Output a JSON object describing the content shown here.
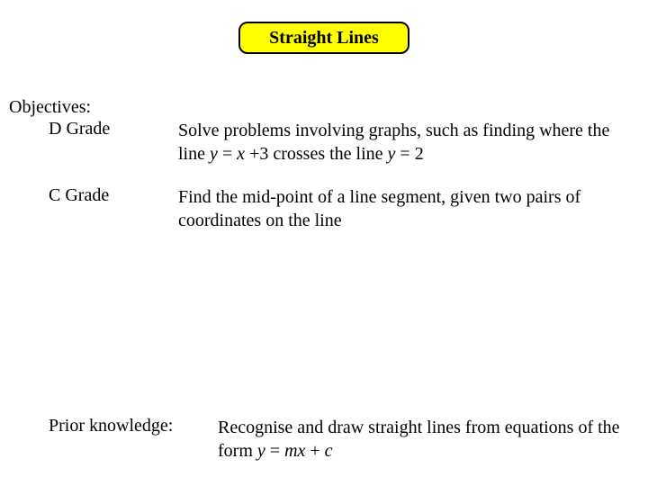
{
  "title": "Straight Lines",
  "objectives_label": "Objectives:",
  "grade_d": {
    "label": "D Grade",
    "text_parts": {
      "p1": "Solve problems involving graphs, such as finding where the line ",
      "eq1_lhs": "y",
      "eq1_mid": " = ",
      "eq1_rhs": "x",
      "eq1_tail": " +3 crosses the line ",
      "eq2_lhs": "y",
      "eq2_mid": " = 2"
    }
  },
  "grade_c": {
    "label": "C Grade",
    "text": "Find the mid-point of a line segment, given two pairs of coordinates on the line"
  },
  "prior": {
    "label": "Prior knowledge:",
    "text_parts": {
      "p1": "Recognise and draw straight lines from equations of the form ",
      "lhs": "y",
      "mid": " = ",
      "m": "mx",
      "plus": " + ",
      "c": "c"
    }
  },
  "colors": {
    "title_bg": "#ffff00",
    "title_border": "#000000",
    "background": "#ffffff",
    "text": "#000000"
  },
  "typography": {
    "base_fontsize": 20,
    "title_fontsize": 20,
    "title_fontweight": "bold",
    "font_family": "Times New Roman"
  }
}
